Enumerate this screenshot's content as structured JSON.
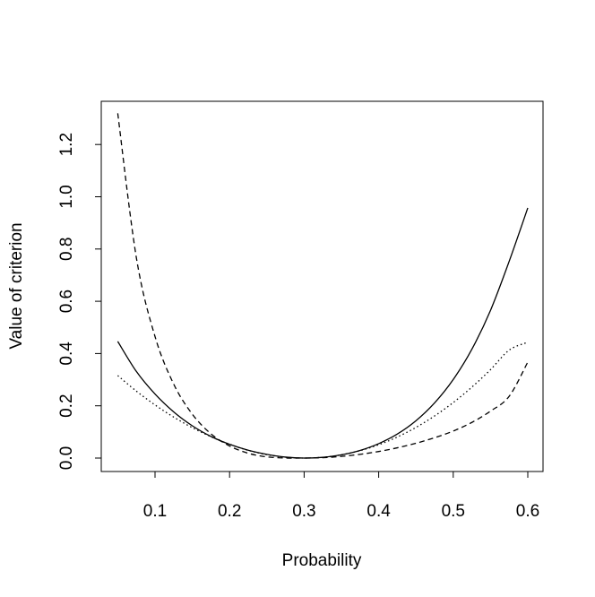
{
  "chart_data": {
    "type": "line",
    "title": "",
    "xlabel": "Probability",
    "ylabel": "Value of criterion",
    "xlim": [
      0.05,
      0.6
    ],
    "ylim": [
      0,
      1.32
    ],
    "x_ticks": [
      0.1,
      0.2,
      0.3,
      0.4,
      0.5,
      0.6
    ],
    "x_tick_labels": [
      "0.1",
      "0.2",
      "0.3",
      "0.4",
      "0.5",
      "0.6"
    ],
    "y_ticks": [
      0.0,
      0.2,
      0.4,
      0.6,
      0.8,
      1.0,
      1.2
    ],
    "y_tick_labels": [
      "0.0",
      "0.2",
      "0.4",
      "0.6",
      "0.8",
      "1.0",
      "1.2"
    ],
    "grid": false,
    "legend": "none",
    "x": [
      0.05,
      0.075,
      0.1,
      0.125,
      0.15,
      0.175,
      0.2,
      0.225,
      0.25,
      0.275,
      0.3,
      0.325,
      0.35,
      0.375,
      0.4,
      0.425,
      0.45,
      0.475,
      0.5,
      0.525,
      0.55,
      0.575,
      0.6
    ],
    "series": [
      {
        "style": "solid",
        "values": [
          0.4464,
          0.3313,
          0.2449,
          0.1767,
          0.1235,
          0.0828,
          0.0526,
          0.0299,
          0.0141,
          0.0037,
          0.0,
          0.0028,
          0.0123,
          0.0292,
          0.0552,
          0.0918,
          0.1427,
          0.211,
          0.3005,
          0.4165,
          0.5653,
          0.7527,
          0.9574
        ]
      },
      {
        "style": "dashed",
        "values": [
          1.3194,
          0.7664,
          0.4651,
          0.2833,
          0.168,
          0.0928,
          0.0463,
          0.0184,
          0.0046,
          0.0002,
          0.0,
          0.0015,
          0.0063,
          0.0142,
          0.0251,
          0.0392,
          0.0567,
          0.0778,
          0.1034,
          0.1364,
          0.1797,
          0.2362,
          0.3674
        ]
      },
      {
        "style": "dotted",
        "values": [
          0.3156,
          0.2561,
          0.2033,
          0.1568,
          0.1164,
          0.0818,
          0.0528,
          0.0294,
          0.013,
          0.0032,
          0.0,
          0.003,
          0.0124,
          0.0283,
          0.051,
          0.0806,
          0.1173,
          0.1612,
          0.2125,
          0.2715,
          0.3383,
          0.4131,
          0.4432
        ]
      }
    ]
  }
}
